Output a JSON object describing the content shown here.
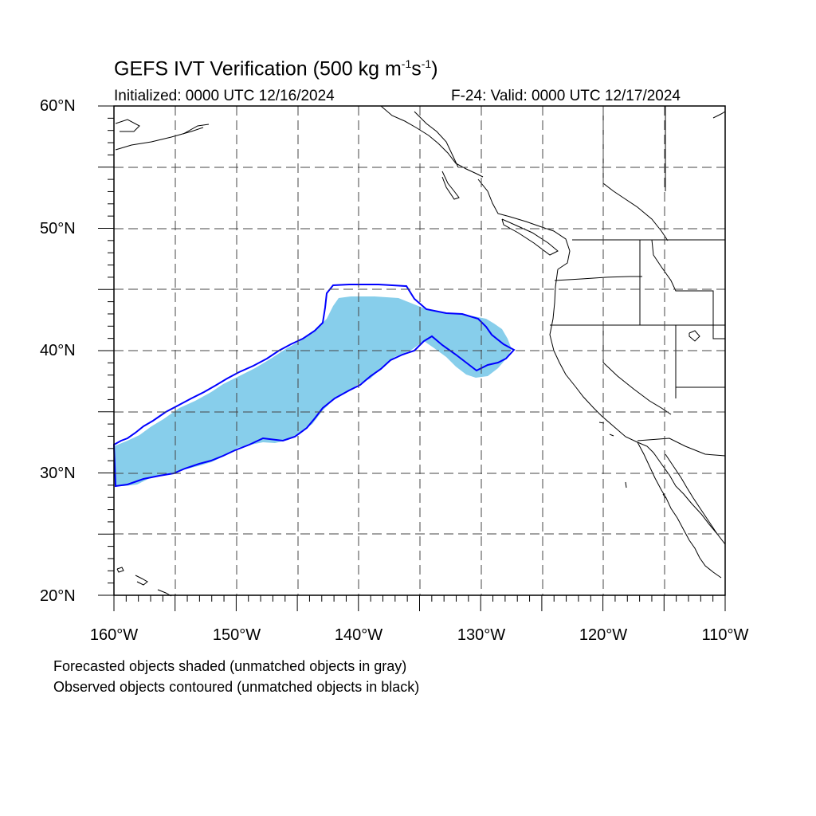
{
  "title": {
    "main": "GEFS IVT Verification (500 kg m",
    "exp1": "-1",
    "mid": "s",
    "exp2": "-1",
    "end": ")"
  },
  "initialized": "Initialized: 0000 UTC 12/16/2024",
  "valid": "F-24: Valid: 0000 UTC 12/17/2024",
  "lat_labels": [
    "60°N",
    "50°N",
    "40°N",
    "30°N",
    "20°N"
  ],
  "lon_labels": [
    "160°W",
    "150°W",
    "140°W",
    "130°W",
    "120°W",
    "110°W"
  ],
  "notes": [
    "Forecasted objects shaded (unmatched objects in gray)",
    "Observed objects contoured (unmatched objects in black)"
  ],
  "map": {
    "lon_range": [
      -160,
      -110
    ],
    "lat_range": [
      20,
      60
    ],
    "grid_interval_deg": 5,
    "grid_style": "dashed",
    "forecast_fill_color": "#87ceeb",
    "observed_contour_color": "#0000ff"
  }
}
